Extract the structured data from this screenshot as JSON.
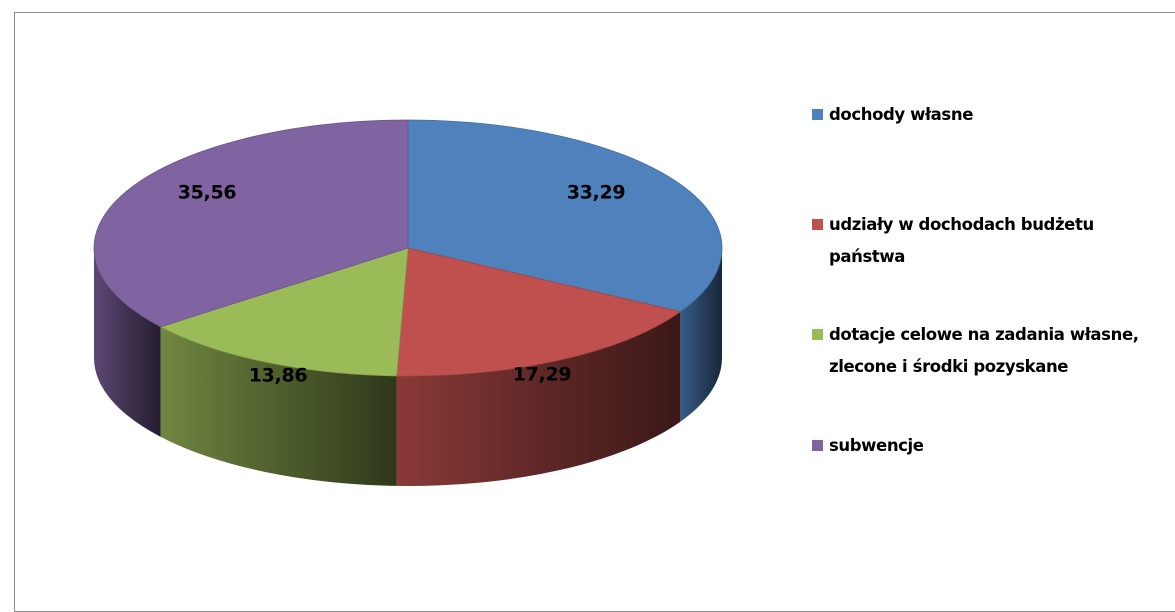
{
  "chart_data": {
    "type": "pie",
    "title": "",
    "style": "3d",
    "legend_position": "right",
    "categories": [
      "dochody własne",
      "udziały w dochodach budżetu państwa",
      "dotacje celowe na zadania własne, zlecone i środki pozyskane",
      "subwencje"
    ],
    "values": [
      33.29,
      17.29,
      13.86,
      35.56
    ],
    "value_labels": [
      "33,29",
      "17,29",
      "13,86",
      "35,56"
    ],
    "colors": [
      "#4f81bd",
      "#c0504d",
      "#9bbb59",
      "#8064a2"
    ]
  },
  "legend": {
    "items": [
      {
        "label": "dochody własne",
        "color": "#4f81bd"
      },
      {
        "label": "udziały w dochodach budżetu państwa",
        "color": "#c0504d"
      },
      {
        "label": "dotacje celowe na zadania własne, zlecone i środki pozyskane",
        "color": "#9bbb59"
      },
      {
        "label": "subwencje",
        "color": "#8064a2"
      }
    ]
  }
}
